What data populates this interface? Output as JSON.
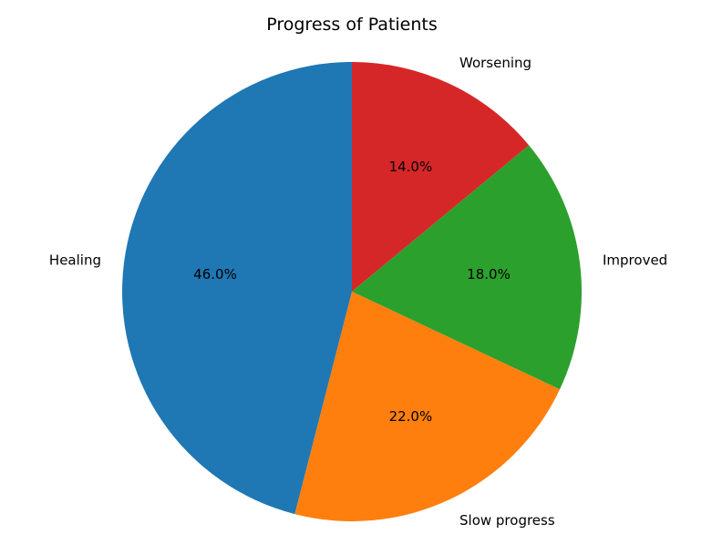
{
  "chart_data": {
    "type": "pie",
    "title": "Progress of Patients",
    "categories": [
      "Worsening",
      "Improved",
      "Slow progress",
      "Healing"
    ],
    "values": [
      14.0,
      18.0,
      22.0,
      46.0
    ],
    "percent_labels": [
      "14.0%",
      "18.0%",
      "22.0%",
      "46.0%"
    ],
    "colors": [
      "#d62728",
      "#2ca02c",
      "#ff7f0e",
      "#1f77b4"
    ],
    "start_angle_deg": 90,
    "direction": "clockwise"
  }
}
